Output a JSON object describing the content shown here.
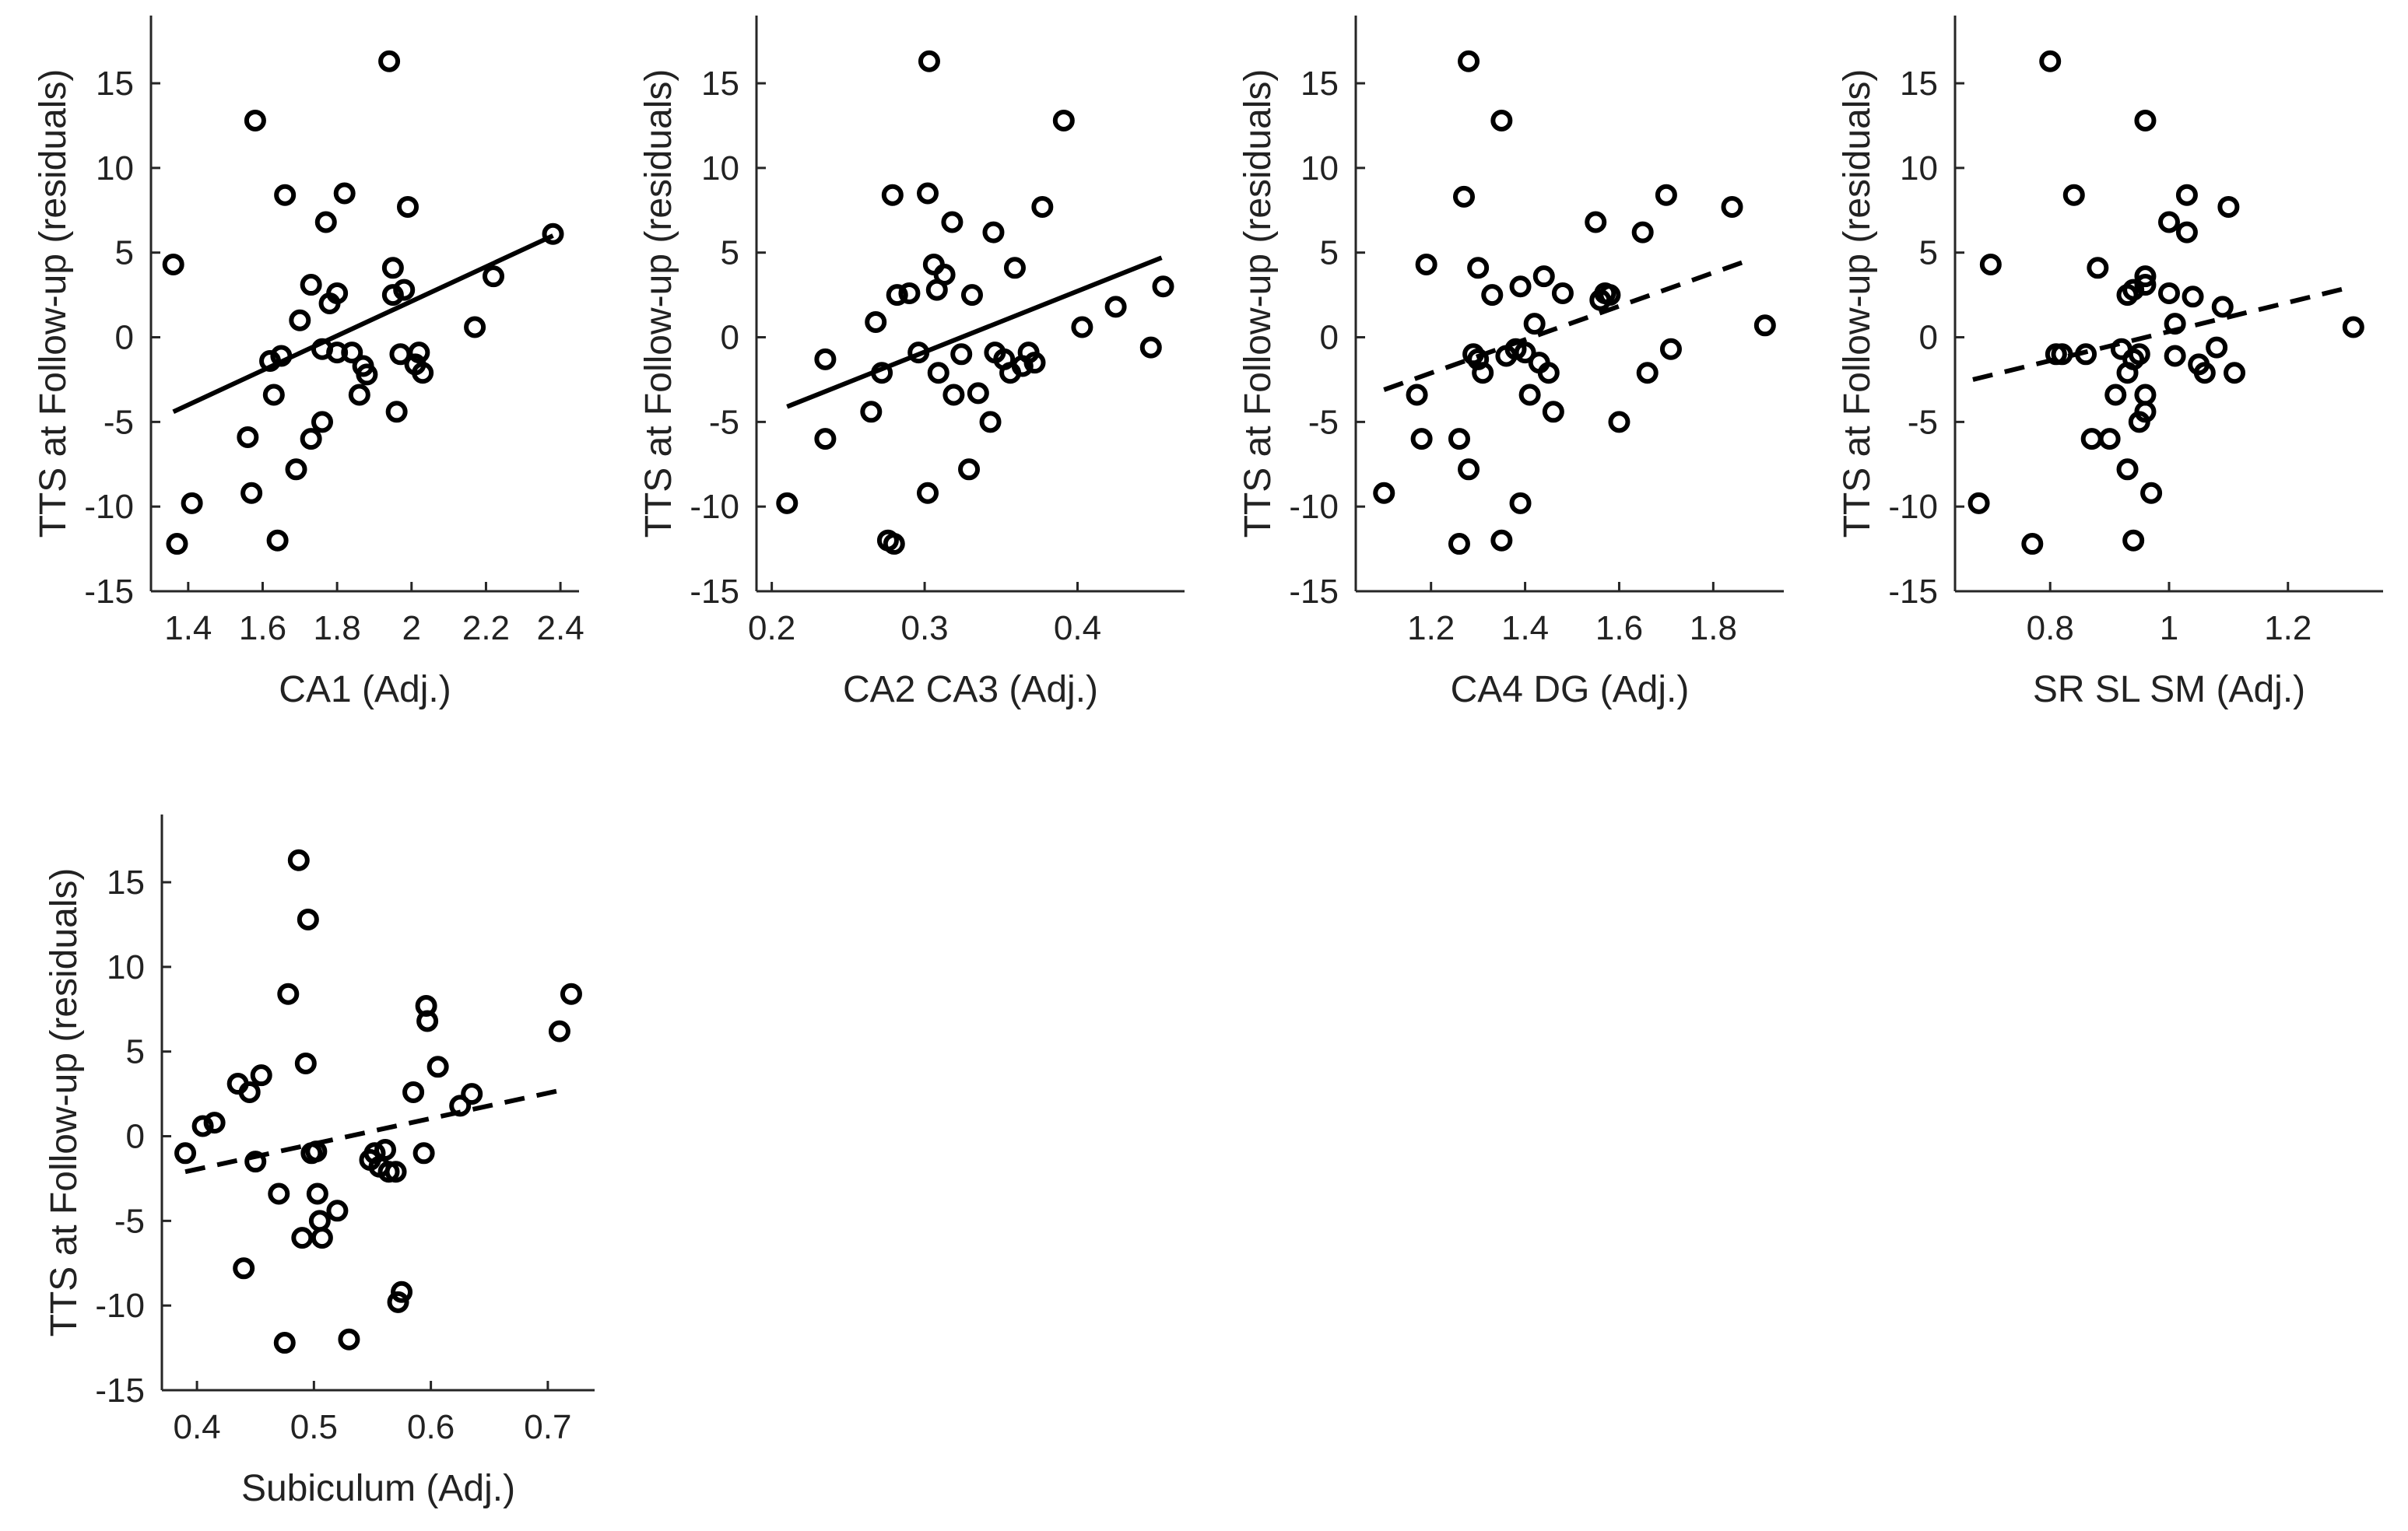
{
  "colors": {
    "ink": "#000000",
    "text": "#222222",
    "axis": "#262626",
    "background": "#ffffff"
  },
  "chart_data": [
    {
      "type": "scatter",
      "xlabel": "CA1 (Adj.)",
      "ylabel": "TTS at Follow-up (residuals)",
      "xlim": [
        1.3,
        2.45
      ],
      "ylim": [
        -15,
        19
      ],
      "xticks": [
        1.4,
        1.6,
        1.8,
        2,
        2.2,
        2.4
      ],
      "xtick_labels": [
        "1.4",
        "1.6",
        "1.8",
        "2",
        "2.2",
        "2.4"
      ],
      "yticks": [
        -15,
        -10,
        -5,
        0,
        5,
        10,
        15
      ],
      "ytick_labels": [
        "-15",
        "-10",
        "-5",
        "0",
        "5",
        "10",
        "15"
      ],
      "fit": {
        "style": "solid",
        "x": [
          1.36,
          2.38
        ],
        "y": [
          -4.4,
          6.0
        ]
      },
      "points": [
        [
          1.36,
          4.3
        ],
        [
          1.37,
          -12.2
        ],
        [
          1.41,
          -9.8
        ],
        [
          1.56,
          -5.9
        ],
        [
          1.57,
          -9.2
        ],
        [
          1.58,
          12.8
        ],
        [
          1.62,
          -1.4
        ],
        [
          1.63,
          -3.4
        ],
        [
          1.64,
          -12.0
        ],
        [
          1.65,
          -1.1
        ],
        [
          1.66,
          8.4
        ],
        [
          1.69,
          -7.8
        ],
        [
          1.7,
          1.0
        ],
        [
          1.73,
          3.1
        ],
        [
          1.73,
          -6.0
        ],
        [
          1.76,
          -5.0
        ],
        [
          1.76,
          -0.7
        ],
        [
          1.77,
          6.8
        ],
        [
          1.78,
          2.0
        ],
        [
          1.8,
          2.6
        ],
        [
          1.8,
          -0.9
        ],
        [
          1.82,
          8.5
        ],
        [
          1.84,
          -0.9
        ],
        [
          1.86,
          -3.4
        ],
        [
          1.87,
          -1.7
        ],
        [
          1.88,
          -2.2
        ],
        [
          1.94,
          16.3
        ],
        [
          1.95,
          2.5
        ],
        [
          1.95,
          4.1
        ],
        [
          1.96,
          -4.4
        ],
        [
          1.97,
          -1.0
        ],
        [
          1.98,
          2.8
        ],
        [
          1.99,
          7.7
        ],
        [
          2.01,
          -1.6
        ],
        [
          2.02,
          -0.9
        ],
        [
          2.03,
          -2.1
        ],
        [
          2.17,
          0.6
        ],
        [
          2.22,
          3.6
        ],
        [
          2.38,
          6.1
        ]
      ]
    },
    {
      "type": "scatter",
      "xlabel": "CA2 CA3 (Adj.)",
      "ylabel": "TTS at Follow-up (residuals)",
      "xlim": [
        0.19,
        0.47
      ],
      "ylim": [
        -15,
        19
      ],
      "xticks": [
        0.2,
        0.3,
        0.4
      ],
      "xtick_labels": [
        "0.2",
        "0.3",
        "0.4"
      ],
      "yticks": [
        -15,
        -10,
        -5,
        0,
        5,
        10,
        15
      ],
      "ytick_labels": [
        "-15",
        "-10",
        "-5",
        "0",
        "5",
        "10",
        "15"
      ],
      "fit": {
        "style": "solid",
        "x": [
          0.21,
          0.455
        ],
        "y": [
          -4.1,
          4.7
        ]
      },
      "points": [
        [
          0.21,
          -9.8
        ],
        [
          0.235,
          -1.3
        ],
        [
          0.235,
          -6.0
        ],
        [
          0.265,
          -4.4
        ],
        [
          0.268,
          0.9
        ],
        [
          0.272,
          -2.1
        ],
        [
          0.276,
          -12.0
        ],
        [
          0.279,
          8.4
        ],
        [
          0.28,
          -12.2
        ],
        [
          0.282,
          2.5
        ],
        [
          0.29,
          2.6
        ],
        [
          0.296,
          -0.9
        ],
        [
          0.302,
          8.5
        ],
        [
          0.302,
          -9.2
        ],
        [
          0.303,
          16.3
        ],
        [
          0.306,
          4.3
        ],
        [
          0.308,
          2.8
        ],
        [
          0.309,
          -2.1
        ],
        [
          0.313,
          3.7
        ],
        [
          0.318,
          6.8
        ],
        [
          0.319,
          -3.4
        ],
        [
          0.324,
          -1.0
        ],
        [
          0.329,
          -7.8
        ],
        [
          0.331,
          2.5
        ],
        [
          0.335,
          -3.3
        ],
        [
          0.343,
          -5.0
        ],
        [
          0.345,
          6.2
        ],
        [
          0.346,
          -0.9
        ],
        [
          0.352,
          -1.3
        ],
        [
          0.356,
          -2.1
        ],
        [
          0.359,
          4.1
        ],
        [
          0.364,
          -1.7
        ],
        [
          0.368,
          -0.9
        ],
        [
          0.372,
          -1.5
        ],
        [
          0.377,
          7.7
        ],
        [
          0.391,
          12.8
        ],
        [
          0.403,
          0.6
        ],
        [
          0.425,
          1.8
        ],
        [
          0.448,
          -0.6
        ],
        [
          0.456,
          3.0
        ]
      ]
    },
    {
      "type": "scatter",
      "xlabel": "CA4 DG (Adj.)",
      "ylabel": "TTS at Follow-up (residuals)",
      "xlim": [
        1.04,
        1.95
      ],
      "ylim": [
        -15,
        19
      ],
      "xticks": [
        1.2,
        1.4,
        1.6,
        1.8
      ],
      "xtick_labels": [
        "1.2",
        "1.4",
        "1.6",
        "1.8"
      ],
      "yticks": [
        -15,
        -10,
        -5,
        0,
        5,
        10,
        15
      ],
      "ytick_labels": [
        "-15",
        "-10",
        "-5",
        "0",
        "5",
        "10",
        "15"
      ],
      "fit": {
        "style": "dashed",
        "x": [
          1.1,
          1.88
        ],
        "y": [
          -3.1,
          4.6
        ]
      },
      "points": [
        [
          1.1,
          -9.2
        ],
        [
          1.17,
          -3.4
        ],
        [
          1.18,
          -6.0
        ],
        [
          1.19,
          4.3
        ],
        [
          1.26,
          -6.0
        ],
        [
          1.26,
          -12.2
        ],
        [
          1.27,
          8.3
        ],
        [
          1.28,
          16.3
        ],
        [
          1.28,
          -7.8
        ],
        [
          1.29,
          -1.0
        ],
        [
          1.3,
          4.1
        ],
        [
          1.3,
          -1.3
        ],
        [
          1.31,
          -2.1
        ],
        [
          1.33,
          2.5
        ],
        [
          1.35,
          12.8
        ],
        [
          1.35,
          -12.0
        ],
        [
          1.36,
          -1.1
        ],
        [
          1.38,
          -0.7
        ],
        [
          1.39,
          -9.8
        ],
        [
          1.39,
          3.0
        ],
        [
          1.4,
          -0.9
        ],
        [
          1.41,
          -3.4
        ],
        [
          1.42,
          0.8
        ],
        [
          1.43,
          -1.5
        ],
        [
          1.44,
          3.6
        ],
        [
          1.45,
          -2.1
        ],
        [
          1.46,
          -4.4
        ],
        [
          1.48,
          2.6
        ],
        [
          1.55,
          6.8
        ],
        [
          1.56,
          2.2
        ],
        [
          1.57,
          2.6
        ],
        [
          1.58,
          2.5
        ],
        [
          1.6,
          -5.0
        ],
        [
          1.65,
          6.2
        ],
        [
          1.66,
          -2.1
        ],
        [
          1.7,
          8.4
        ],
        [
          1.71,
          -0.7
        ],
        [
          1.84,
          7.7
        ],
        [
          1.91,
          0.7
        ]
      ]
    },
    {
      "type": "scatter",
      "xlabel": "SR SL SM (Adj.)",
      "ylabel": "TTS at Follow-up (residuals)",
      "xlim": [
        0.64,
        1.36
      ],
      "ylim": [
        -15,
        19
      ],
      "xticks": [
        0.8,
        1,
        1.2
      ],
      "xtick_labels": [
        "0.8",
        "1",
        "1.2"
      ],
      "yticks": [
        -15,
        -10,
        -5,
        0,
        5,
        10,
        15
      ],
      "ytick_labels": [
        "-15",
        "-10",
        "-5",
        "0",
        "5",
        "10",
        "15"
      ],
      "fit": {
        "style": "dashed",
        "x": [
          0.67,
          1.31
        ],
        "y": [
          -2.5,
          3.0
        ]
      },
      "points": [
        [
          0.68,
          -9.8
        ],
        [
          0.7,
          4.3
        ],
        [
          0.77,
          -12.2
        ],
        [
          0.8,
          16.3
        ],
        [
          0.81,
          -1.0
        ],
        [
          0.82,
          -1.0
        ],
        [
          0.84,
          8.4
        ],
        [
          0.86,
          -1.0
        ],
        [
          0.87,
          -6.0
        ],
        [
          0.88,
          4.1
        ],
        [
          0.9,
          -6.0
        ],
        [
          0.91,
          -3.4
        ],
        [
          0.92,
          -0.7
        ],
        [
          0.93,
          -2.1
        ],
        [
          0.93,
          2.5
        ],
        [
          0.93,
          -7.8
        ],
        [
          0.94,
          -12.0
        ],
        [
          0.94,
          -1.3
        ],
        [
          0.94,
          2.8
        ],
        [
          0.95,
          -5.0
        ],
        [
          0.95,
          -1.0
        ],
        [
          0.96,
          3.1
        ],
        [
          0.96,
          12.8
        ],
        [
          0.96,
          -3.4
        ],
        [
          0.96,
          -4.4
        ],
        [
          0.96,
          3.6
        ],
        [
          0.97,
          -9.2
        ],
        [
          1.0,
          2.6
        ],
        [
          1.0,
          6.8
        ],
        [
          1.01,
          0.8
        ],
        [
          1.01,
          -1.1
        ],
        [
          1.03,
          8.4
        ],
        [
          1.03,
          6.2
        ],
        [
          1.04,
          2.4
        ],
        [
          1.05,
          -1.6
        ],
        [
          1.06,
          -2.1
        ],
        [
          1.08,
          -0.6
        ],
        [
          1.09,
          1.8
        ],
        [
          1.1,
          7.7
        ],
        [
          1.11,
          -2.1
        ],
        [
          1.31,
          0.6
        ]
      ]
    },
    {
      "type": "scatter",
      "xlabel": "Subiculum (Adj.)",
      "ylabel": "TTS at Follow-up (residuals)",
      "xlim": [
        0.37,
        0.74
      ],
      "ylim": [
        -15,
        19
      ],
      "xticks": [
        0.4,
        0.5,
        0.6,
        0.7
      ],
      "xtick_labels": [
        "0.4",
        "0.5",
        "0.6",
        "0.7"
      ],
      "yticks": [
        -15,
        -10,
        -5,
        0,
        5,
        10,
        15
      ],
      "ytick_labels": [
        "-15",
        "-10",
        "-5",
        "0",
        "5",
        "10",
        "15"
      ],
      "fit": {
        "style": "dashed",
        "x": [
          0.39,
          0.71
        ],
        "y": [
          -2.1,
          2.7
        ]
      },
      "points": [
        [
          0.39,
          -1.0
        ],
        [
          0.405,
          0.6
        ],
        [
          0.415,
          0.8
        ],
        [
          0.435,
          3.1
        ],
        [
          0.44,
          -7.8
        ],
        [
          0.445,
          2.6
        ],
        [
          0.45,
          -1.5
        ],
        [
          0.455,
          3.6
        ],
        [
          0.47,
          -3.4
        ],
        [
          0.475,
          -12.2
        ],
        [
          0.478,
          8.4
        ],
        [
          0.487,
          16.3
        ],
        [
          0.49,
          -6.0
        ],
        [
          0.493,
          4.3
        ],
        [
          0.495,
          12.8
        ],
        [
          0.498,
          -1.0
        ],
        [
          0.502,
          -0.9
        ],
        [
          0.503,
          -3.4
        ],
        [
          0.505,
          -5.0
        ],
        [
          0.507,
          -6.0
        ],
        [
          0.52,
          -4.4
        ],
        [
          0.53,
          -12.0
        ],
        [
          0.548,
          -1.4
        ],
        [
          0.552,
          -1.0
        ],
        [
          0.556,
          -1.8
        ],
        [
          0.561,
          -0.8
        ],
        [
          0.564,
          -2.1
        ],
        [
          0.57,
          -2.1
        ],
        [
          0.572,
          -9.8
        ],
        [
          0.575,
          -9.2
        ],
        [
          0.585,
          2.6
        ],
        [
          0.594,
          -1.0
        ],
        [
          0.596,
          7.7
        ],
        [
          0.597,
          6.8
        ],
        [
          0.606,
          4.1
        ],
        [
          0.625,
          1.8
        ],
        [
          0.635,
          2.5
        ],
        [
          0.71,
          6.2
        ],
        [
          0.72,
          8.4
        ]
      ]
    }
  ]
}
